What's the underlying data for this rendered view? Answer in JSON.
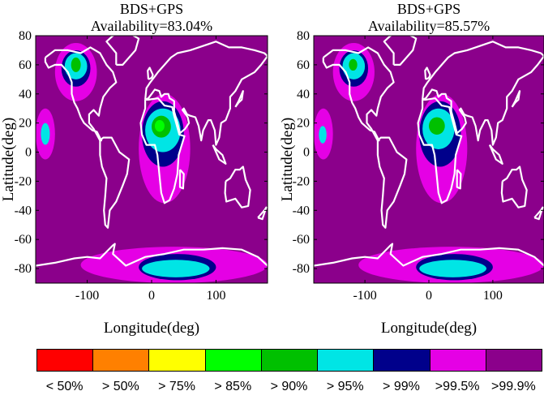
{
  "chart_data": [
    {
      "type": "heatmap",
      "title": "BDS+GPS",
      "subtitle": "Availability=83.04%",
      "xlabel": "Longitude(deg)",
      "ylabel": "Latitude(deg)",
      "xlim": [
        -180,
        180
      ],
      "ylim": [
        -90,
        80
      ],
      "xticks": [
        -100,
        0,
        100
      ],
      "yticks": [
        -80,
        -60,
        -40,
        -20,
        0,
        20,
        40,
        60,
        80
      ],
      "xtick_labels": [
        "-100",
        "0",
        "100"
      ],
      "ytick_labels": [
        "-80",
        "-60",
        "-40",
        "-20",
        "0",
        "20",
        "40",
        "60",
        "80"
      ],
      "background_level": ">99.9%",
      "regions": [
        {
          "level": ">99.5%",
          "lon": [
            -150,
            -85
          ],
          "lat": [
            35,
            75
          ]
        },
        {
          "level": ">99%",
          "lon": [
            -140,
            -95
          ],
          "lat": [
            45,
            70
          ]
        },
        {
          "level": ">95%",
          "lon": [
            -135,
            -100
          ],
          "lat": [
            50,
            68
          ]
        },
        {
          "level": ">90%",
          "lon": [
            -125,
            -110
          ],
          "lat": [
            55,
            65
          ]
        },
        {
          "level": ">99.5%",
          "lon": [
            -20,
            60
          ],
          "lat": [
            -35,
            40
          ]
        },
        {
          "level": ">99%",
          "lon": [
            -15,
            50
          ],
          "lat": [
            -10,
            35
          ]
        },
        {
          "level": ">95%",
          "lon": [
            -10,
            45
          ],
          "lat": [
            0,
            30
          ]
        },
        {
          "level": ">90%",
          "lon": [
            0,
            30
          ],
          "lat": [
            10,
            25
          ]
        },
        {
          "level": ">85%",
          "lon": [
            5,
            20
          ],
          "lat": [
            14,
            22
          ]
        },
        {
          "level": ">99.5%",
          "lon": [
            -180,
            -150
          ],
          "lat": [
            -5,
            30
          ]
        },
        {
          "level": ">95%",
          "lon": [
            -172,
            -158
          ],
          "lat": [
            5,
            20
          ]
        },
        {
          "level": ">99.5%",
          "lon": [
            -110,
            180
          ],
          "lat": [
            -90,
            -65
          ]
        },
        {
          "level": ">99%",
          "lon": [
            -20,
            100
          ],
          "lat": [
            -88,
            -70
          ]
        },
        {
          "level": ">95%",
          "lon": [
            -15,
            90
          ],
          "lat": [
            -86,
            -74
          ]
        }
      ]
    },
    {
      "type": "heatmap",
      "title": "BDS+GPS",
      "subtitle": "Availability=85.57%",
      "xlabel": "Longitude(deg)",
      "ylabel": "Latitude(deg)",
      "xlim": [
        -180,
        180
      ],
      "ylim": [
        -90,
        80
      ],
      "xticks": [
        -100,
        0,
        100
      ],
      "yticks": [
        -80,
        -60,
        -40,
        -20,
        0,
        20,
        40,
        60,
        80
      ],
      "xtick_labels": [
        "-100",
        "0",
        "100"
      ],
      "ytick_labels": [
        "-80",
        "-60",
        "-40",
        "-20",
        "0",
        "20",
        "40",
        "60",
        "80"
      ],
      "background_level": ">99.9%",
      "regions": [
        {
          "level": ">99.5%",
          "lon": [
            -150,
            -85
          ],
          "lat": [
            35,
            75
          ]
        },
        {
          "level": ">99%",
          "lon": [
            -140,
            -95
          ],
          "lat": [
            45,
            70
          ]
        },
        {
          "level": ">95%",
          "lon": [
            -135,
            -100
          ],
          "lat": [
            50,
            68
          ]
        },
        {
          "level": ">90%",
          "lon": [
            -125,
            -112
          ],
          "lat": [
            56,
            64
          ]
        },
        {
          "level": ">99.5%",
          "lon": [
            -20,
            60
          ],
          "lat": [
            -35,
            40
          ]
        },
        {
          "level": ">99%",
          "lon": [
            -15,
            50
          ],
          "lat": [
            -10,
            35
          ]
        },
        {
          "level": ">95%",
          "lon": [
            -10,
            40
          ],
          "lat": [
            2,
            30
          ]
        },
        {
          "level": ">90%",
          "lon": [
            0,
            25
          ],
          "lat": [
            12,
            24
          ]
        },
        {
          "level": ">99.5%",
          "lon": [
            -180,
            -150
          ],
          "lat": [
            -5,
            30
          ]
        },
        {
          "level": ">95%",
          "lon": [
            -172,
            -160
          ],
          "lat": [
            6,
            18
          ]
        },
        {
          "level": ">99.5%",
          "lon": [
            -110,
            180
          ],
          "lat": [
            -90,
            -65
          ]
        },
        {
          "level": ">99%",
          "lon": [
            -20,
            100
          ],
          "lat": [
            -88,
            -70
          ]
        },
        {
          "level": ">95%",
          "lon": [
            -15,
            90
          ],
          "lat": [
            -86,
            -74
          ]
        }
      ]
    }
  ],
  "legend": {
    "entries": [
      {
        "label": "< 50%",
        "color": "#ff0000"
      },
      {
        "label": "> 50%",
        "color": "#ff8000"
      },
      {
        "label": "> 75%",
        "color": "#ffff00"
      },
      {
        "label": "> 85%",
        "color": "#00ff00"
      },
      {
        "label": "> 90%",
        "color": "#00c000"
      },
      {
        "label": "> 95%",
        "color": "#00e5e5"
      },
      {
        "label": "> 99%",
        "color": "#00008b"
      },
      {
        "label": ">99.5%",
        "color": "#e500e5"
      },
      {
        "label": ">99.9%",
        "color": "#8b008b"
      }
    ]
  },
  "level_colors": {
    "< 50%": "#ff0000",
    "> 50%": "#ff8000",
    "> 75%": "#ffff00",
    ">85%": "#00ff00",
    ">90%": "#00c000",
    ">95%": "#00e5e5",
    ">99%": "#00008b",
    ">99.5%": "#e500e5",
    ">99.9%": "#8b008b"
  },
  "coastline_color": "#ffffff"
}
